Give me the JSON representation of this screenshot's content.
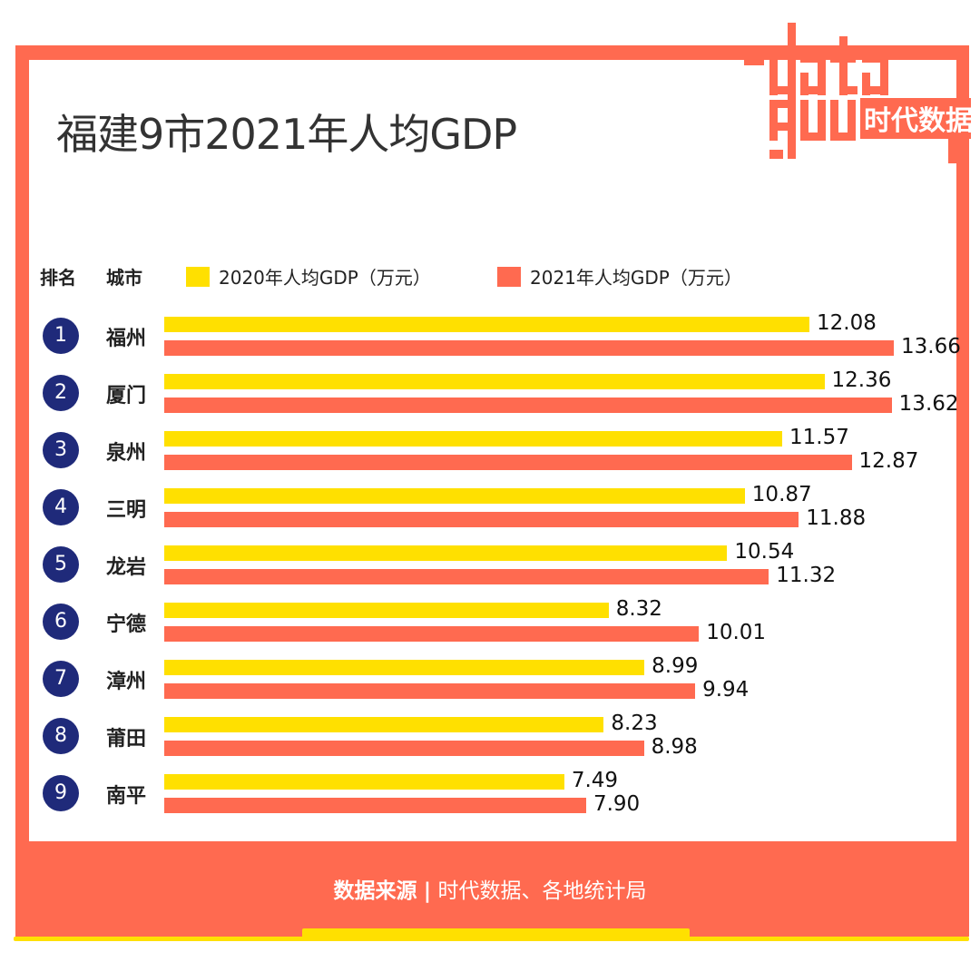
{
  "title": "福建9市2021年人均GDP",
  "logo": {
    "text": "data 时代数据",
    "colors": {
      "brand": "#ff6a50"
    }
  },
  "header": {
    "rank": "排名",
    "city": "城市"
  },
  "footer": {
    "label": "数据来源",
    "sep": "|",
    "source": "时代数据、各地统计局"
  },
  "chart_data": {
    "type": "bar",
    "orientation": "horizontal",
    "ranks": [
      "1",
      "2",
      "3",
      "4",
      "5",
      "6",
      "7",
      "8",
      "9"
    ],
    "categories": [
      "福州",
      "厦门",
      "泉州",
      "三明",
      "龙岩",
      "宁德",
      "漳州",
      "莆田",
      "南平"
    ],
    "series": [
      {
        "name": "2020年人均GDP（万元）",
        "color": "#ffe000",
        "values": [
          12.08,
          12.36,
          11.57,
          10.87,
          10.54,
          8.32,
          8.99,
          8.23,
          7.49
        ],
        "labels": [
          "12.08",
          "12.36",
          "11.57",
          "10.87",
          "10.54",
          "8.32",
          "8.99",
          "8.23",
          "7.49"
        ]
      },
      {
        "name": "2021年人均GDP（万元）",
        "color": "#ff6a50",
        "values": [
          13.66,
          13.62,
          12.87,
          11.88,
          11.32,
          10.01,
          9.94,
          8.98,
          7.9
        ],
        "labels": [
          "13.66",
          "13.62",
          "12.87",
          "11.88",
          "11.32",
          "10.01",
          "9.94",
          "8.98",
          "7.90"
        ]
      }
    ],
    "xlim": [
      0,
      14
    ],
    "grid": false,
    "legend": "top"
  }
}
